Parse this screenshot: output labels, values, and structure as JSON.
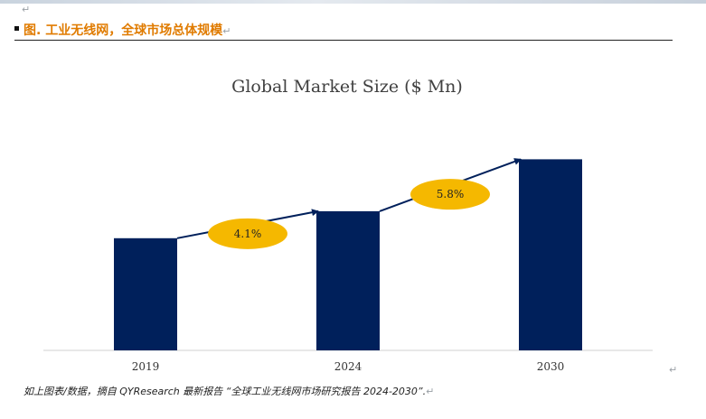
{
  "heading": {
    "text": "图.   工业无线网，全球市场总体规模"
  },
  "marks": {
    "return": "↵"
  },
  "chart_data": {
    "type": "bar",
    "title": "Global Market Size ($ Mn)",
    "categories": [
      "2019",
      "2024",
      "2030"
    ],
    "values": [
      54,
      67,
      92
    ],
    "ylim": [
      0,
      100
    ],
    "grid": false,
    "legend": "none",
    "growth_labels": [
      "4.1%",
      "5.8%"
    ],
    "colors": {
      "bar": "#00205b",
      "callout": "#f5b800",
      "arrow": "#00205b"
    }
  },
  "caption": {
    "text": "如上图表/数据，摘自 QYResearch 最新报告 “全球工业无线网市场研究报告 2024-2030”."
  }
}
